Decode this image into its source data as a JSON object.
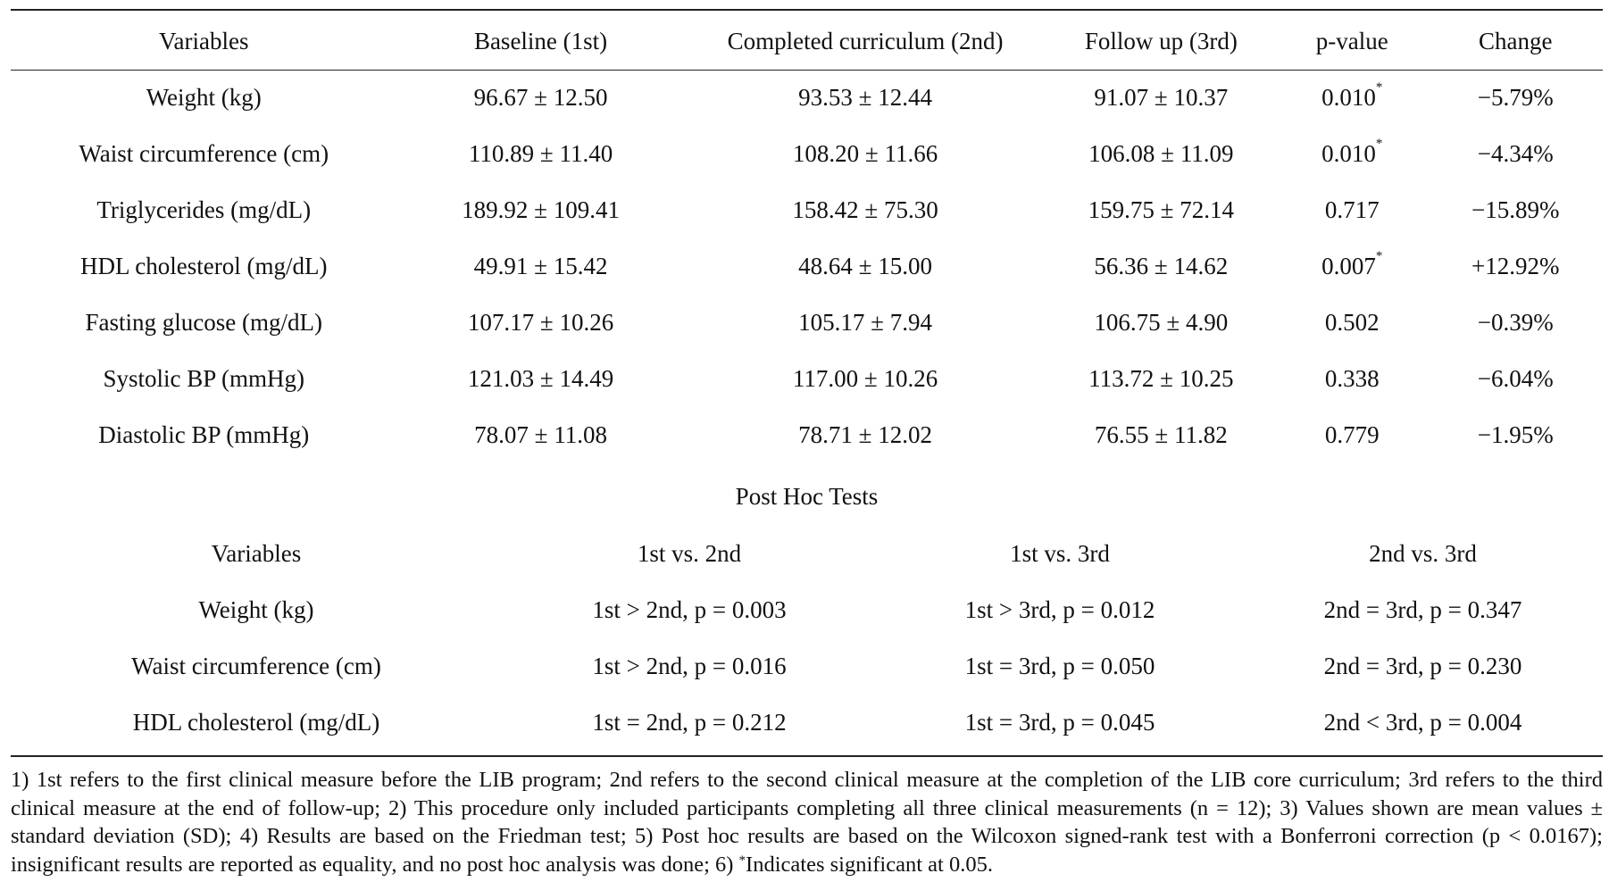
{
  "main_table": {
    "headers": [
      "Variables",
      "Baseline (1st)",
      "Completed curriculum (2nd)",
      "Follow up (3rd)",
      "p-value",
      "Change"
    ],
    "rows": [
      {
        "variable": "Weight (kg)",
        "baseline": "96.67 ± 12.50",
        "completed": "93.53 ± 12.44",
        "follow_up": "91.07 ± 10.37",
        "p_value": "0.010",
        "sig": "*",
        "change": "−5.79%"
      },
      {
        "variable": "Waist circumference (cm)",
        "baseline": "110.89 ± 11.40",
        "completed": "108.20 ± 11.66",
        "follow_up": "106.08 ± 11.09",
        "p_value": "0.010",
        "sig": "*",
        "change": "−4.34%"
      },
      {
        "variable": "Triglycerides (mg/dL)",
        "baseline": "189.92 ± 109.41",
        "completed": "158.42 ± 75.30",
        "follow_up": "159.75 ± 72.14",
        "p_value": "0.717",
        "sig": "",
        "change": "−15.89%"
      },
      {
        "variable": "HDL cholesterol (mg/dL)",
        "baseline": "49.91 ± 15.42",
        "completed": "48.64 ± 15.00",
        "follow_up": "56.36 ± 14.62",
        "p_value": "0.007",
        "sig": "*",
        "change": "+12.92%"
      },
      {
        "variable": "Fasting glucose (mg/dL)",
        "baseline": "107.17 ± 10.26",
        "completed": "105.17 ± 7.94",
        "follow_up": "106.75 ± 4.90",
        "p_value": "0.502",
        "sig": "",
        "change": "−0.39%"
      },
      {
        "variable": "Systolic BP (mmHg)",
        "baseline": "121.03 ± 14.49",
        "completed": "117.00 ± 10.26",
        "follow_up": "113.72 ± 10.25",
        "p_value": "0.338",
        "sig": "",
        "change": "−6.04%"
      },
      {
        "variable": "Diastolic BP (mmHg)",
        "baseline": "78.07 ± 11.08",
        "completed": "78.71 ± 12.02",
        "follow_up": "76.55 ± 11.82",
        "p_value": "0.779",
        "sig": "",
        "change": "−1.95%"
      }
    ]
  },
  "posthoc": {
    "title": "Post Hoc Tests",
    "headers": [
      "Variables",
      "1st vs. 2nd",
      "1st vs. 3rd",
      "2nd vs. 3rd"
    ],
    "rows": [
      {
        "variable": "Weight (kg)",
        "first_vs_second": "1st > 2nd, p = 0.003",
        "first_vs_third": "1st > 3rd, p = 0.012",
        "second_vs_third": "2nd = 3rd, p = 0.347"
      },
      {
        "variable": "Waist circumference (cm)",
        "first_vs_second": "1st > 2nd, p = 0.016",
        "first_vs_third": "1st = 3rd, p = 0.050",
        "second_vs_third": "2nd = 3rd, p = 0.230"
      },
      {
        "variable": "HDL cholesterol (mg/dL)",
        "first_vs_second": "1st = 2nd, p = 0.212",
        "first_vs_third": "1st = 3rd, p = 0.045",
        "second_vs_third": "2nd < 3rd, p = 0.004"
      }
    ]
  },
  "footnote": {
    "text": "1) 1st refers to the first clinical measure before the LIB program; 2nd refers to the second clinical measure at the completion of the LIB core curriculum; 3rd refers to the third clinical measure at the end of follow-up; 2) This procedure only included participants completing all three clinical measurements (n = 12); 3) Values shown are mean values ± standard deviation (SD); 4) Results are based on the Friedman test; 5) Post hoc results are based on the Wilcoxon signed-rank test with a Bonferroni correction (p < 0.0167); insignificant results are reported as equality, and no post hoc analysis was done; 6) ",
    "sig_mark": "*",
    "sig_text": "Indicates significant at 0.05."
  }
}
